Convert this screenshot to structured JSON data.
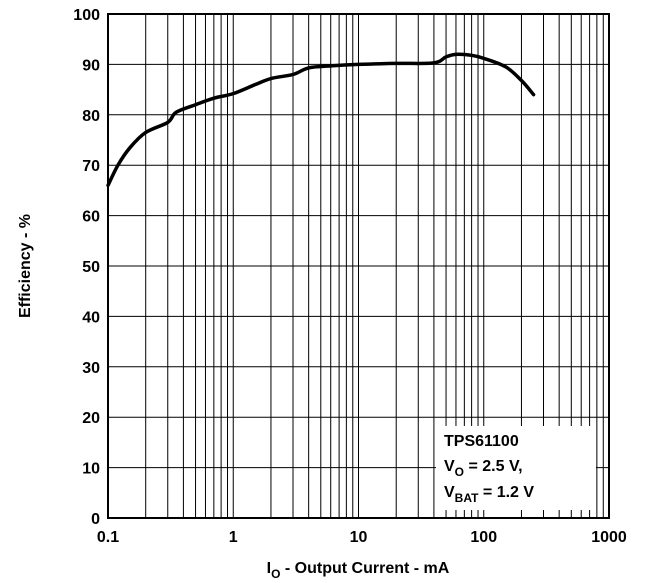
{
  "chart_data": {
    "type": "line",
    "xscale": "log",
    "xlim": [
      0.1,
      1000
    ],
    "ylim": [
      0,
      100
    ],
    "grid": true,
    "xticks": [
      "0.1",
      "1",
      "10",
      "100",
      "1000"
    ],
    "yticks": [
      "0",
      "10",
      "20",
      "30",
      "40",
      "50",
      "60",
      "70",
      "80",
      "90",
      "100"
    ],
    "xlabel": {
      "main": "I",
      "sub": "O",
      "rest": " - Output Current - mA"
    },
    "ylabel": "Efficiency - %",
    "annotation": {
      "line1": "TPS61100",
      "line2": {
        "main": "V",
        "sub": "O",
        "rest": " = 2.5 V,"
      },
      "line3": {
        "main": "V",
        "sub": "BAT",
        "rest": " = 1.2 V"
      }
    },
    "series": [
      {
        "color": "#000000",
        "points": [
          [
            0.1,
            66
          ],
          [
            0.12,
            70
          ],
          [
            0.15,
            73.5
          ],
          [
            0.2,
            76.5
          ],
          [
            0.3,
            78.5
          ],
          [
            0.35,
            80.5
          ],
          [
            0.5,
            82
          ],
          [
            0.7,
            83.3
          ],
          [
            1.0,
            84.2
          ],
          [
            1.5,
            86
          ],
          [
            2.0,
            87.2
          ],
          [
            3.0,
            88
          ],
          [
            4.0,
            89.3
          ],
          [
            6.0,
            89.7
          ],
          [
            10,
            90
          ],
          [
            20,
            90.2
          ],
          [
            40,
            90.3
          ],
          [
            50,
            91.5
          ],
          [
            60,
            92
          ],
          [
            80,
            91.8
          ],
          [
            100,
            91.2
          ],
          [
            150,
            89.5
          ],
          [
            200,
            86.8
          ],
          [
            250,
            84
          ]
        ]
      }
    ]
  }
}
